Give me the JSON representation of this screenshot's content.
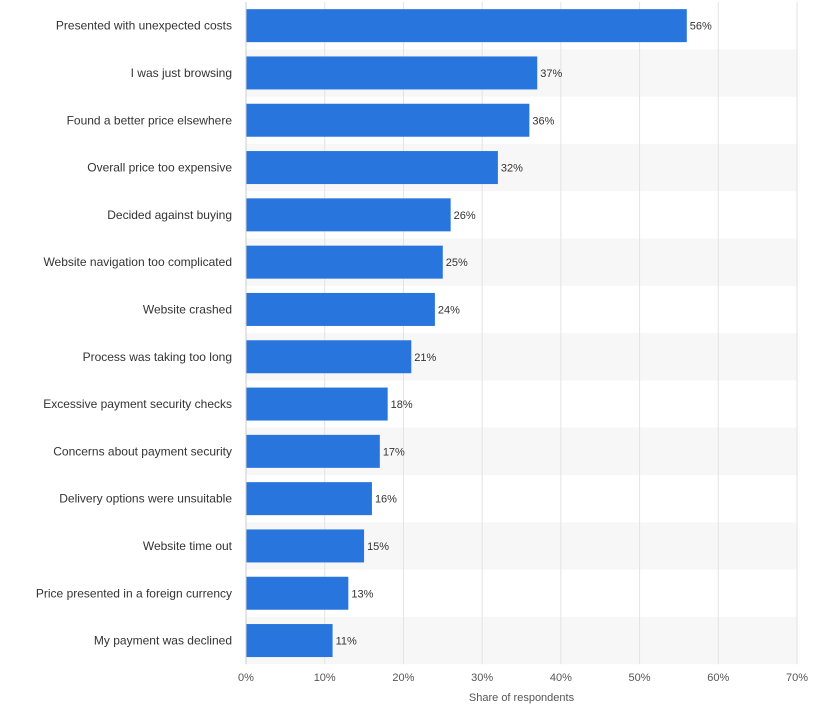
{
  "chart_data": {
    "type": "bar",
    "orientation": "horizontal",
    "categories": [
      "Presented with unexpected costs",
      "I was just browsing",
      "Found a better price elsewhere",
      "Overall price too expensive",
      "Decided against buying",
      "Website navigation too complicated",
      "Website crashed",
      "Process was taking too long",
      "Excessive payment security checks",
      "Concerns about payment security",
      "Delivery options were unsuitable",
      "Website time out",
      "Price presented in a foreign currency",
      "My payment was declined"
    ],
    "values": [
      56,
      37,
      36,
      32,
      26,
      25,
      24,
      21,
      18,
      17,
      16,
      15,
      13,
      11
    ],
    "value_labels": [
      "56%",
      "37%",
      "36%",
      "32%",
      "26%",
      "25%",
      "24%",
      "21%",
      "18%",
      "17%",
      "16%",
      "15%",
      "13%",
      "11%"
    ],
    "xlabel": "Share of respondents",
    "ylabel": "",
    "xlim": [
      0,
      70
    ],
    "x_ticks": [
      0,
      10,
      20,
      30,
      40,
      50,
      60,
      70
    ],
    "x_tick_labels": [
      "0%",
      "10%",
      "20%",
      "30%",
      "40%",
      "50%",
      "60%",
      "70%"
    ],
    "grid": true,
    "bar_color": "#2876DD",
    "band_color": "#F7F7F7"
  }
}
